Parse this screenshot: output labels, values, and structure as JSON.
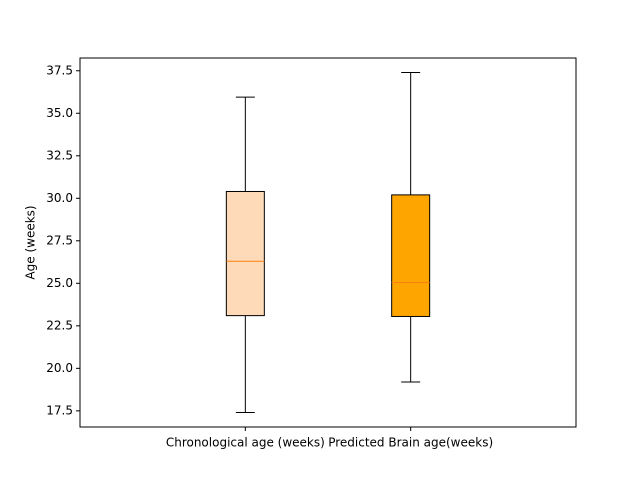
{
  "chart_data": {
    "type": "box",
    "title": "",
    "xlabel": "",
    "ylabel": "Age (weeks)",
    "ylim": [
      16.55,
      38.25
    ],
    "yticks": [
      "17.5",
      "20.0",
      "22.5",
      "25.0",
      "27.5",
      "30.0",
      "32.5",
      "35.0",
      "37.5"
    ],
    "grid": false,
    "categories": [
      "Chronological age (weeks)",
      "Predicted Brain age(weeks)"
    ],
    "boxes": [
      {
        "whisker_low": 17.4,
        "q1": 23.1,
        "median": 26.3,
        "q3": 30.4,
        "whisker_high": 35.95,
        "color": "#ffdab9"
      },
      {
        "whisker_low": 19.2,
        "q1": 23.05,
        "median": 25.05,
        "q3": 30.2,
        "whisker_high": 37.4,
        "color": "#ffa500"
      }
    ],
    "median_color": "#ff7f0e",
    "edge_color": "#000000"
  }
}
